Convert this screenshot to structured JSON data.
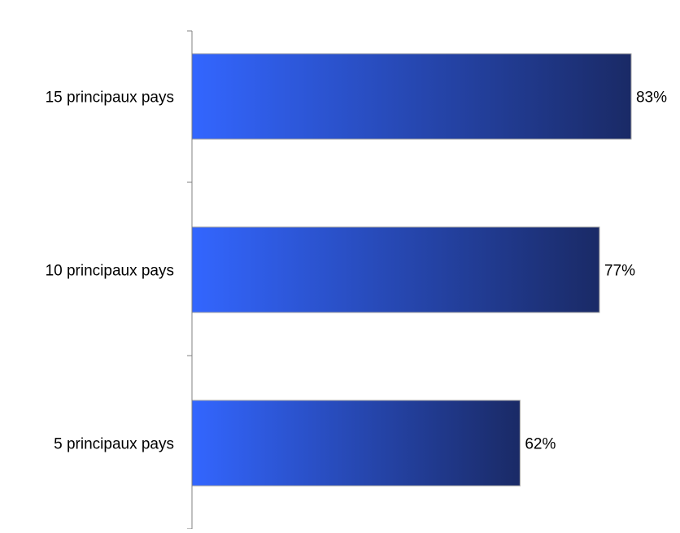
{
  "chart_data": {
    "type": "bar",
    "orientation": "horizontal",
    "categories": [
      "15 principaux pays",
      "10 principaux pays",
      "5 principaux pays"
    ],
    "values": [
      83,
      77,
      62
    ],
    "data_labels": [
      "83%",
      "77%",
      "62%"
    ],
    "unit": "%",
    "title": "",
    "xlabel": "",
    "ylabel": "",
    "xlim": [
      0,
      100
    ],
    "grid": false,
    "legend": "none",
    "colors": {
      "bar_gradient_start": "#3366ff",
      "bar_gradient_end": "#1a2a66",
      "bar_border": "#a6a6a6",
      "axis": "#808080",
      "text": "#000000"
    }
  }
}
